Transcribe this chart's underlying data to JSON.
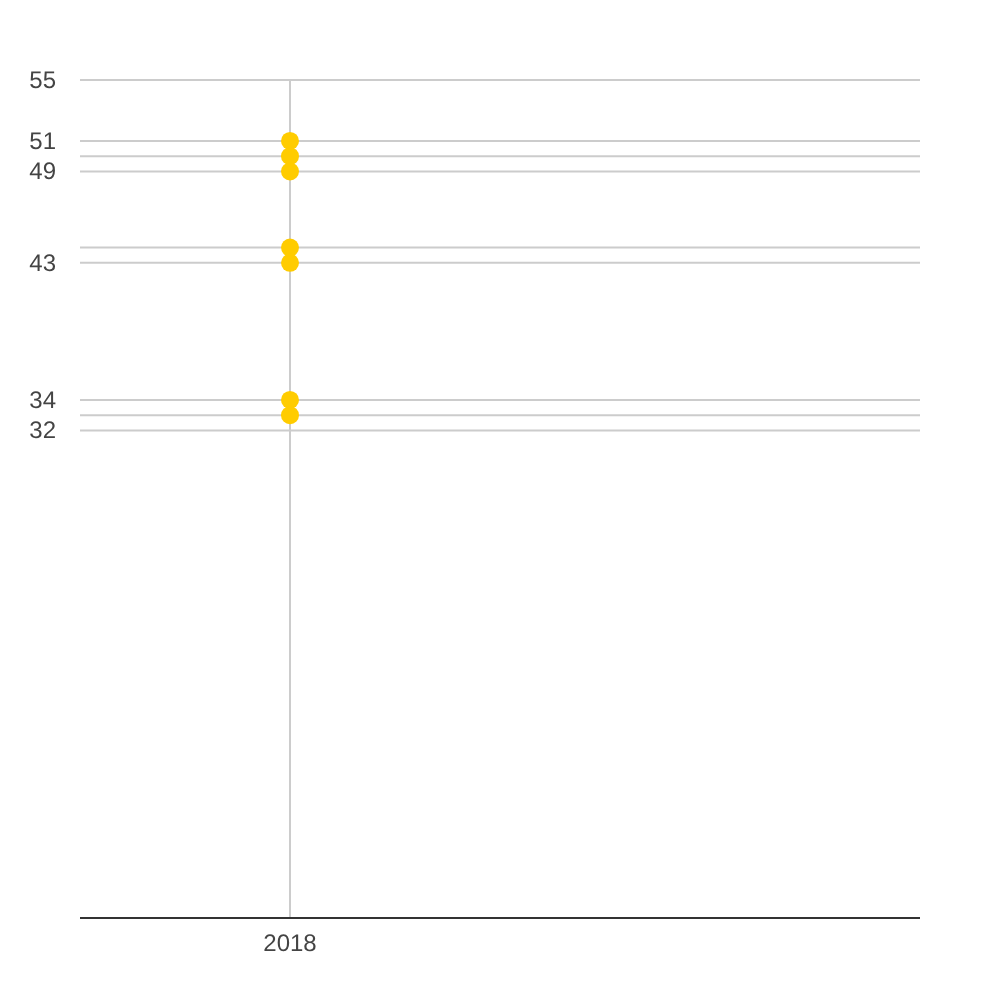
{
  "chart_data": {
    "type": "scatter",
    "categories": [
      "2018",
      null
    ],
    "series": [
      {
        "color": "#ffcc00",
        "values": [
          51,
          null
        ]
      },
      {
        "color": "#ffcc00",
        "values": [
          50,
          null
        ]
      },
      {
        "color": "#ffcc00",
        "values": [
          49,
          null
        ]
      },
      {
        "color": "#ffcc00",
        "values": [
          44,
          null
        ]
      },
      {
        "color": "#ffcc00",
        "values": [
          43,
          null
        ]
      },
      {
        "color": "#ffcc00",
        "values": [
          34,
          null
        ]
      },
      {
        "color": "#ffcc00",
        "values": [
          33,
          null
        ]
      }
    ],
    "ylim": [
      0,
      55
    ],
    "yticks": [
      32,
      {
        "value": 33,
        "label": null
      },
      34,
      43,
      {
        "value": 44,
        "label": null
      },
      49,
      {
        "value": 50,
        "label": null
      },
      51,
      55
    ],
    "grid": true,
    "marker": "circle"
  }
}
